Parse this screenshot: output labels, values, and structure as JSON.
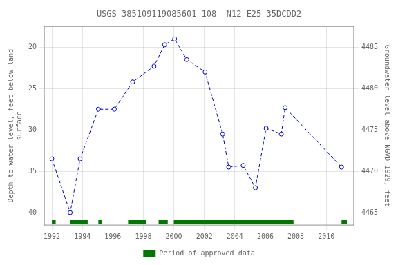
{
  "chart_data": {
    "type": "line",
    "title": "USGS 385109119085601 108  N12 E25 35DCDD2",
    "ylabel": "Depth to water level, feet below land\nsurface",
    "y2label": "Groundwater level above NGVD 1929, feet",
    "x": [
      1992.0,
      1993.2,
      1993.85,
      1995.05,
      1996.1,
      1997.3,
      1998.7,
      1999.4,
      2000.05,
      2000.85,
      2002.05,
      2003.2,
      2003.6,
      2004.55,
      2005.35,
      2006.05,
      2007.05,
      2007.3,
      2011.0
    ],
    "series": [
      {
        "color": "#0000cc",
        "line_style": "dashed",
        "marker": "circle",
        "values": [
          33.5,
          40.0,
          33.5,
          27.5,
          27.5,
          24.2,
          22.3,
          19.7,
          19.0,
          21.5,
          23.0,
          30.5,
          34.5,
          34.3,
          37.0,
          29.8,
          30.5,
          27.3,
          34.5
        ]
      },
      {
        "name": "Period of approved data",
        "color": "#007700",
        "type": "bar",
        "ranges": [
          [
            1992.0,
            1992.25
          ],
          [
            1993.2,
            1994.35
          ],
          [
            1995.05,
            1995.3
          ],
          [
            1997.0,
            1998.2
          ],
          [
            1999.0,
            1999.6
          ],
          [
            2000.0,
            2007.85
          ],
          [
            2011.0,
            2011.35
          ]
        ]
      }
    ],
    "xlim": [
      1991.5,
      2011.8
    ],
    "xticks": [
      1992,
      1994,
      1996,
      1998,
      2000,
      2002,
      2004,
      2006,
      2008,
      2010
    ],
    "ylim": [
      41.5,
      17.5
    ],
    "yticks": [
      20,
      25,
      30,
      35,
      40
    ],
    "y2lim": [
      4463.5,
      4487.5
    ],
    "y2ticks": [
      4465,
      4470,
      4475,
      4480,
      4485
    ],
    "grid": true,
    "legend": "bottom"
  }
}
